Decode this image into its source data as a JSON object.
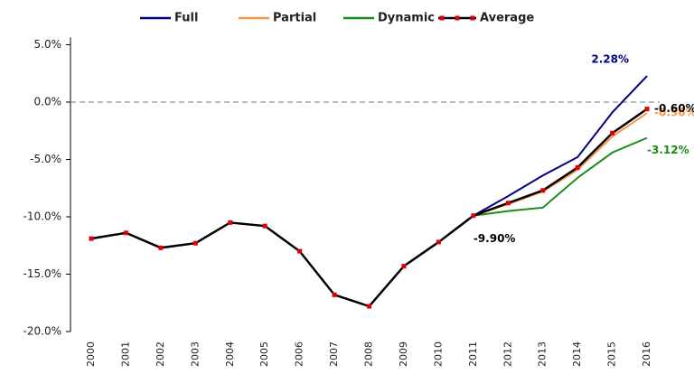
{
  "chart_data": {
    "type": "line",
    "categories": [
      "2000",
      "2001",
      "2002",
      "2003",
      "2004",
      "2005",
      "2006",
      "2007",
      "2008",
      "2009",
      "2010",
      "2011",
      "2012",
      "2013",
      "2014",
      "2015",
      "2016"
    ],
    "series": [
      {
        "name": "Full",
        "color": "#000080",
        "values": [
          null,
          null,
          null,
          null,
          null,
          null,
          null,
          null,
          null,
          null,
          null,
          -9.9,
          -8.2,
          -6.4,
          -4.8,
          -0.9,
          2.28
        ],
        "value_labels": [
          null,
          null,
          null,
          null,
          null,
          null,
          null,
          null,
          null,
          null,
          null,
          null,
          null,
          null,
          null,
          null,
          "2.28%"
        ]
      },
      {
        "name": "Partial",
        "color": "#f79646",
        "values": [
          null,
          null,
          null,
          null,
          null,
          null,
          null,
          null,
          null,
          null,
          null,
          -9.9,
          -8.9,
          -7.8,
          -5.9,
          -3.0,
          -0.96
        ],
        "value_labels": [
          null,
          null,
          null,
          null,
          null,
          null,
          null,
          null,
          null,
          null,
          null,
          null,
          null,
          null,
          null,
          null,
          "-0.96%"
        ]
      },
      {
        "name": "Dynamic",
        "color": "#1a8c1a",
        "values": [
          null,
          null,
          null,
          null,
          null,
          null,
          null,
          null,
          null,
          null,
          null,
          -9.9,
          -9.5,
          -9.2,
          -6.6,
          -4.4,
          -3.12
        ],
        "value_labels": [
          null,
          null,
          null,
          null,
          null,
          null,
          null,
          null,
          null,
          null,
          null,
          null,
          null,
          null,
          null,
          null,
          "-3.12%"
        ]
      },
      {
        "name": "Average",
        "color": "#000000",
        "marker_color": "#e00000",
        "values": [
          -11.9,
          -11.4,
          -12.7,
          -12.3,
          -10.5,
          -10.8,
          -13.0,
          -16.8,
          -17.8,
          -14.3,
          -12.2,
          -9.9,
          -8.8,
          -7.7,
          -5.7,
          -2.7,
          -0.6
        ],
        "value_labels": [
          null,
          null,
          null,
          null,
          null,
          null,
          null,
          null,
          null,
          null,
          null,
          "-9.90%",
          null,
          null,
          null,
          null,
          "-0.60%"
        ]
      }
    ],
    "ylim": [
      -20,
      5
    ],
    "yticks": [
      {
        "value": 5,
        "label": "5.0%"
      },
      {
        "value": 0,
        "label": "0.0%"
      },
      {
        "value": -5,
        "label": "-5.0%"
      },
      {
        "value": -10,
        "label": "-10.0%"
      },
      {
        "value": -15,
        "label": "-15.0%"
      },
      {
        "value": -20,
        "label": "-20.0%"
      }
    ],
    "reference_line": 0,
    "legend": "top"
  }
}
